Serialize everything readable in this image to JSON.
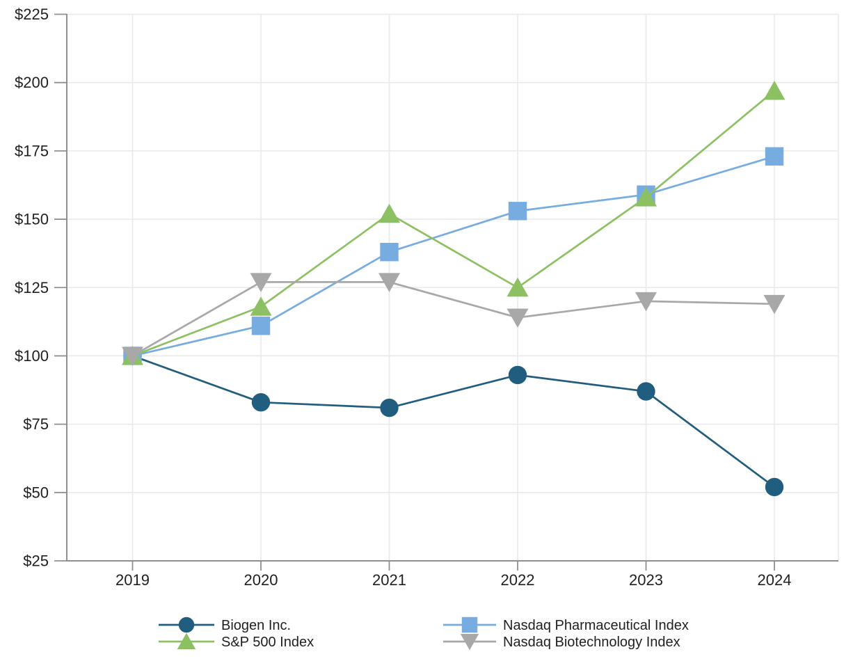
{
  "chart_data": {
    "type": "line",
    "title": "",
    "xlabel": "",
    "ylabel": "",
    "x_labels": [
      "2019",
      "2020",
      "2021",
      "2022",
      "2023",
      "2024"
    ],
    "y_ticks": [
      25,
      50,
      75,
      100,
      125,
      150,
      175,
      200,
      225
    ],
    "y_tick_labels": [
      "$25",
      "$50",
      "$75",
      "$100",
      "$125",
      "$150",
      "$175",
      "$200",
      "$225"
    ],
    "ylim": [
      25,
      225
    ],
    "grid": true,
    "legend_position": "bottom",
    "series": [
      {
        "name": "Biogen Inc.",
        "marker": "circle",
        "color": "#215d7f",
        "values": [
          100,
          83,
          81,
          93,
          87,
          52
        ]
      },
      {
        "name": "S&P 500 Index",
        "marker": "triangle-up",
        "color": "#8dc063",
        "values": [
          100,
          118,
          152,
          125,
          158,
          197
        ]
      },
      {
        "name": "Nasdaq Pharmaceutical Index",
        "marker": "square",
        "color": "#76acdf",
        "values": [
          100,
          111,
          138,
          153,
          159,
          173
        ]
      },
      {
        "name": "Nasdaq Biotechnology Index",
        "marker": "triangle-down",
        "color": "#a8a8a8",
        "values": [
          100,
          127,
          127,
          114,
          120,
          119
        ]
      }
    ],
    "colors": {
      "grid": "#e9e9e9",
      "axis": "#8f8f8f",
      "text": "#1f1f1f",
      "background": "#ffffff"
    }
  }
}
